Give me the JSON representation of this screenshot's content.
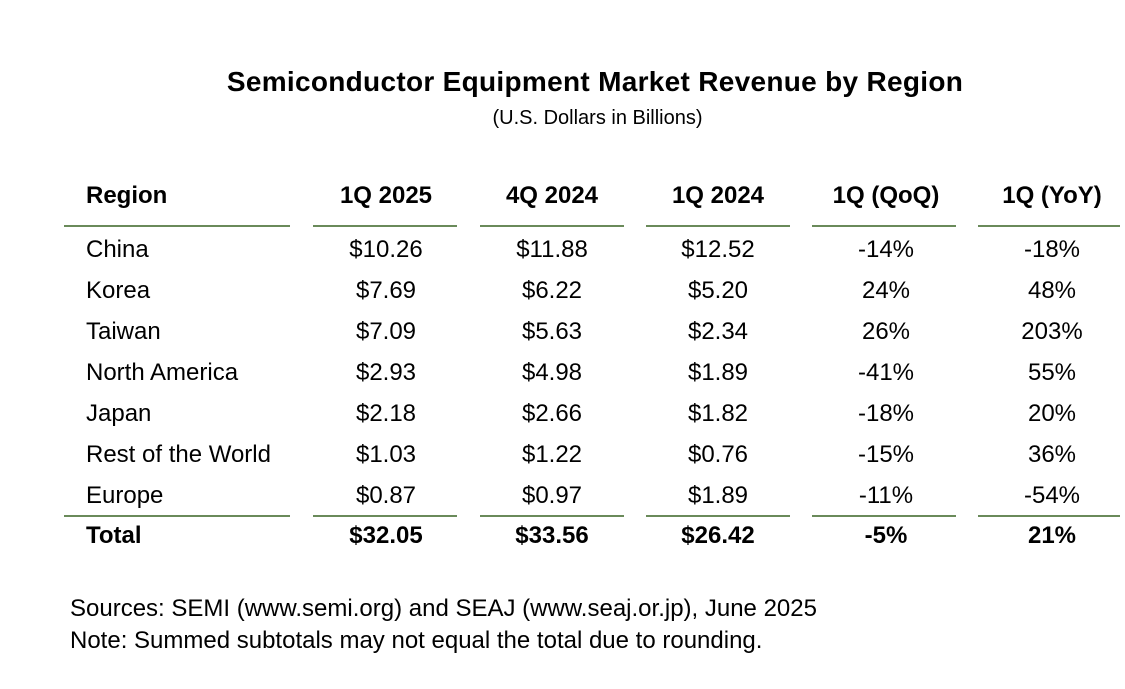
{
  "title": "Semiconductor Equipment Market Revenue by Region",
  "subtitle": "(U.S. Dollars in Billions)",
  "table": {
    "headers": [
      "Region",
      "1Q 2025",
      "4Q 2024",
      "1Q 2024",
      "1Q (QoQ)",
      "1Q (YoY)"
    ],
    "rows": [
      [
        "China",
        "$10.26",
        "$11.88",
        "$12.52",
        "-14%",
        "-18%"
      ],
      [
        "Korea",
        "$7.69",
        "$6.22",
        "$5.20",
        "24%",
        "48%"
      ],
      [
        "Taiwan",
        "$7.09",
        "$5.63",
        "$2.34",
        "26%",
        "203%"
      ],
      [
        "North America",
        "$2.93",
        "$4.98",
        "$1.89",
        "-41%",
        "55%"
      ],
      [
        "Japan",
        "$2.18",
        "$2.66",
        "$1.82",
        "-18%",
        "20%"
      ],
      [
        "Rest of the World",
        "$1.03",
        "$1.22",
        "$0.76",
        "-15%",
        "36%"
      ],
      [
        "Europe",
        "$0.87",
        "$0.97",
        "$1.89",
        "-11%",
        "-54%"
      ]
    ],
    "total": [
      "Total",
      "$32.05",
      "$33.56",
      "$26.42",
      "-5%",
      "21%"
    ]
  },
  "footnotes": {
    "sources": "Sources: SEMI (www.semi.org) and SEAJ (www.seaj.or.jp), June 2025",
    "note": "Note: Summed subtotals may not equal the total due to rounding."
  },
  "colors": {
    "rule": "#6a8a5a",
    "text": "#000000",
    "background": "#ffffff"
  }
}
